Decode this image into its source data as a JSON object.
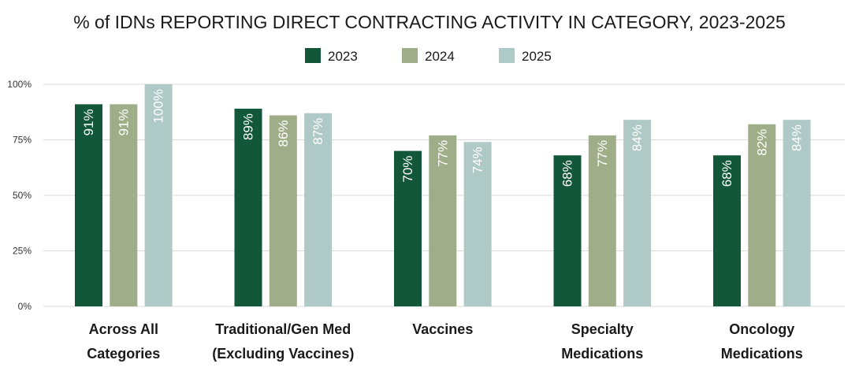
{
  "chart_data": {
    "type": "bar",
    "title": "% of IDNs REPORTING DIRECT CONTRACTING ACTIVITY IN CATEGORY, 2023-2025",
    "categories": [
      [
        "Across All",
        "Categories"
      ],
      [
        "Traditional/Gen Med",
        "(Excluding Vaccines)"
      ],
      [
        "Vaccines"
      ],
      [
        "Specialty",
        "Medications"
      ],
      [
        "Oncology",
        "Medications"
      ]
    ],
    "series": [
      {
        "name": "2023",
        "color": "#12573a",
        "values": [
          91,
          89,
          70,
          68,
          68
        ],
        "labels": [
          "91%",
          "89%",
          "70%",
          "68%",
          "68%"
        ]
      },
      {
        "name": "2024",
        "color": "#9fad88",
        "values": [
          91,
          86,
          77,
          77,
          82
        ],
        "labels": [
          "91%",
          "86%",
          "77%",
          "77%",
          "82%"
        ]
      },
      {
        "name": "2025",
        "color": "#afc9c6",
        "values": [
          100,
          87,
          74,
          84,
          84
        ],
        "labels": [
          "100%",
          "87%",
          "74%",
          "84%",
          "84%"
        ]
      }
    ],
    "ylim": [
      0,
      100
    ],
    "yticks": [
      0,
      25,
      50,
      75,
      100
    ],
    "ytick_labels": [
      "0%",
      "25%",
      "50%",
      "75%",
      "100%"
    ],
    "grid": true,
    "legend": "top-center"
  }
}
